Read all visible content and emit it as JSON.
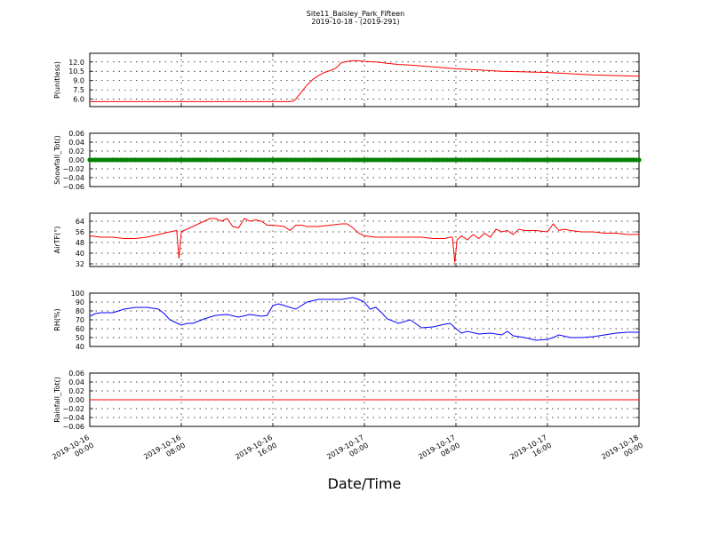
{
  "figure": {
    "title": "Site11_Baisley_Park_Fifteen",
    "subtitle": "2019-10-18 - (2019-291)",
    "xlabel": "Date/Time",
    "xticks": [
      {
        "l1": "2019-10-16",
        "l2": "00:00",
        "v": 0
      },
      {
        "l1": "2019-10-16",
        "l2": "08:00",
        "v": 8
      },
      {
        "l1": "2019-10-16",
        "l2": "16:00",
        "v": 16
      },
      {
        "l1": "2019-10-17",
        "l2": "00:00",
        "v": 24
      },
      {
        "l1": "2019-10-17",
        "l2": "08:00",
        "v": 32
      },
      {
        "l1": "2019-10-17",
        "l2": "16:00",
        "v": 40
      },
      {
        "l1": "2019-10-18",
        "l2": "00:00",
        "v": 48
      }
    ]
  },
  "chart_data": [
    {
      "type": "line",
      "ylabel": "P(unitless)",
      "ylim": [
        4.8,
        13.4
      ],
      "yticks": [
        6.0,
        7.5,
        9.0,
        10.5,
        12.0
      ],
      "ytick_labels": [
        "6.0",
        "7.5",
        "9.0",
        "10.5",
        "12.0"
      ],
      "color": "#ff0000",
      "grid": true,
      "x": [
        0,
        2,
        4,
        6,
        8,
        10,
        12,
        14,
        16,
        17.5,
        17.8,
        18,
        18.5,
        19,
        19.5,
        20,
        20.5,
        21,
        21.5,
        22,
        22.5,
        23,
        23.5,
        24,
        25,
        26,
        27,
        28,
        30,
        32,
        34,
        36,
        38,
        40,
        42,
        44,
        46,
        48
      ],
      "y": [
        5.6,
        5.6,
        5.6,
        5.6,
        5.6,
        5.6,
        5.6,
        5.6,
        5.6,
        5.6,
        5.7,
        6.0,
        7.2,
        8.3,
        9.2,
        9.8,
        10.3,
        10.6,
        11.0,
        11.9,
        12.1,
        12.2,
        12.2,
        12.1,
        12.0,
        11.8,
        11.6,
        11.5,
        11.2,
        10.9,
        10.7,
        10.5,
        10.4,
        10.3,
        10.1,
        9.9,
        9.8,
        9.7
      ]
    },
    {
      "type": "scatter",
      "ylabel": "Snowfall_Tot()",
      "ylim": [
        -0.06,
        0.06
      ],
      "yticks": [
        -0.06,
        -0.04,
        -0.02,
        0.0,
        0.02,
        0.04,
        0.06
      ],
      "ytick_labels": [
        "−0.06",
        "−0.04",
        "−0.02",
        "0.00",
        "0.02",
        "0.04",
        "0.06"
      ],
      "color": "#008000",
      "grid": true,
      "x_start": 0,
      "x_end": 48,
      "x_step": 0.25,
      "constant_value": 0.0
    },
    {
      "type": "line",
      "ylabel": "AirTF(°)",
      "ylim": [
        30,
        70
      ],
      "yticks": [
        32,
        40,
        48,
        56,
        64
      ],
      "ytick_labels": [
        "32",
        "40",
        "48",
        "56",
        "64"
      ],
      "color": "#ff0000",
      "grid": true,
      "x": [
        0,
        1,
        2,
        3,
        4,
        5,
        6,
        7,
        7.6,
        7.8,
        8.0,
        8.2,
        8.5,
        9,
        9.5,
        10,
        10.5,
        11,
        11.5,
        12,
        12.5,
        13,
        13.5,
        14,
        14.5,
        15,
        15.5,
        16,
        17,
        17.5,
        18,
        18.5,
        19,
        20,
        21,
        22,
        22.5,
        23,
        23.5,
        24,
        25,
        26,
        27,
        28,
        29,
        30,
        31,
        31.5,
        31.7,
        31.9,
        32.1,
        32.5,
        33,
        33.5,
        34,
        34.5,
        35,
        35.5,
        36,
        36.5,
        37,
        37.5,
        38,
        39,
        40,
        40.5,
        41,
        41.5,
        42,
        43,
        44,
        45,
        46,
        47,
        48
      ],
      "y": [
        53,
        52,
        52,
        51,
        51,
        52,
        54,
        56,
        57,
        36,
        56,
        57,
        58,
        60,
        62,
        64,
        66,
        66,
        64,
        66,
        60,
        59,
        66,
        64,
        65,
        64,
        61,
        61,
        60,
        57,
        61,
        61,
        60,
        60,
        61,
        62,
        62,
        59,
        55,
        53,
        52,
        52,
        52,
        52,
        52,
        51,
        51,
        52,
        52,
        33,
        50,
        53,
        50,
        54,
        51,
        55,
        52,
        58,
        56,
        57,
        54,
        58,
        57,
        57,
        56,
        62,
        57,
        58,
        57,
        56,
        56,
        55,
        55,
        54,
        54
      ]
    },
    {
      "type": "line",
      "ylabel": "RH(%)",
      "ylim": [
        40,
        100
      ],
      "yticks": [
        40,
        50,
        60,
        70,
        80,
        90,
        100
      ],
      "ytick_labels": [
        "40",
        "50",
        "60",
        "70",
        "80",
        "90",
        "100"
      ],
      "color": "#0000ff",
      "grid": true,
      "x": [
        0,
        0.5,
        1,
        2,
        3,
        4,
        5,
        6,
        6.5,
        7,
        7.5,
        8,
        8.5,
        9,
        10,
        11,
        12,
        13,
        14,
        15,
        15.5,
        16,
        16.5,
        17,
        18,
        19,
        20,
        21,
        22,
        23,
        23.5,
        24,
        24.5,
        25,
        25.5,
        26,
        27,
        28,
        29,
        30,
        31,
        31.5,
        32,
        32.5,
        33,
        34,
        35,
        36,
        36.5,
        37,
        38,
        39,
        40,
        40.5,
        41,
        42,
        43,
        44,
        45,
        46,
        47,
        48
      ],
      "y": [
        74,
        77,
        78,
        78,
        82,
        84,
        84,
        82,
        77,
        70,
        67,
        64,
        66,
        66,
        71,
        75,
        76,
        73,
        76,
        74,
        75,
        86,
        88,
        86,
        82,
        90,
        93,
        93,
        93,
        95,
        93,
        90,
        82,
        84,
        78,
        71,
        66,
        70,
        61,
        62,
        65,
        66,
        60,
        55,
        57,
        54,
        55,
        53,
        57,
        52,
        50,
        47,
        48,
        50,
        53,
        50,
        50,
        51,
        53,
        55,
        56,
        56
      ]
    },
    {
      "type": "line",
      "ylabel": "Rainfall_Tot()",
      "ylim": [
        -0.06,
        0.06
      ],
      "yticks": [
        -0.06,
        -0.04,
        -0.02,
        0.0,
        0.02,
        0.04,
        0.06
      ],
      "ytick_labels": [
        "−0.06",
        "−0.04",
        "−0.02",
        "0.00",
        "0.02",
        "0.04",
        "0.06"
      ],
      "color": "#ff0000",
      "grid": true,
      "x": [
        0,
        48
      ],
      "y": [
        0.0,
        0.0
      ]
    }
  ]
}
